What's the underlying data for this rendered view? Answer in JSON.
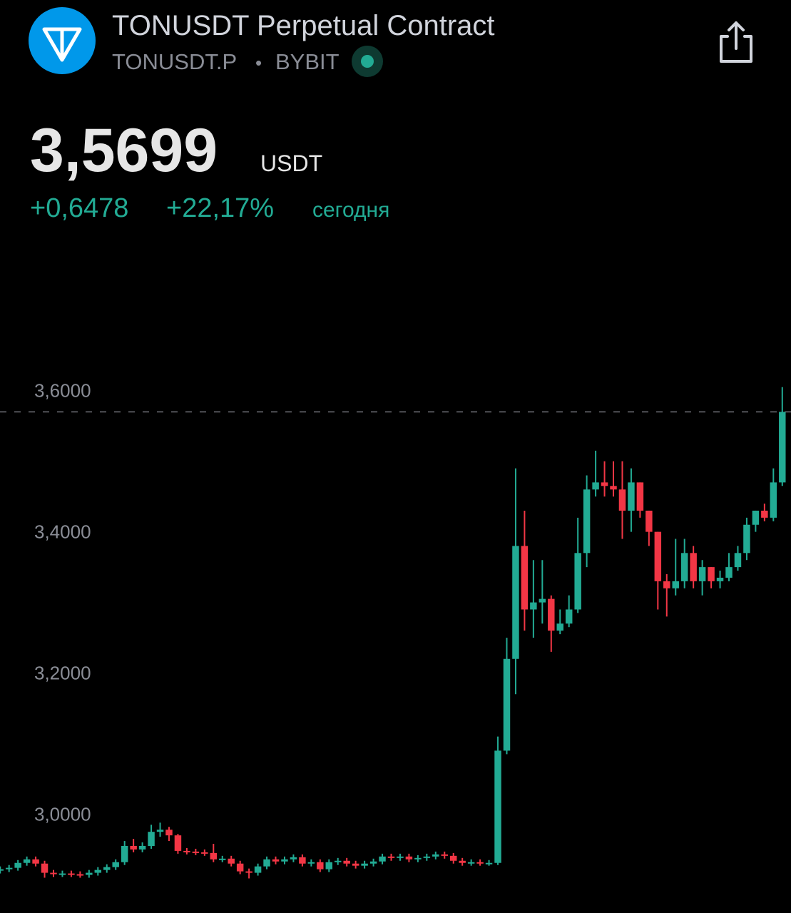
{
  "header": {
    "title": "TONUSDT Perpetual Contract",
    "symbol": "TONUSDT.P",
    "separator": "•",
    "exchange": "BYBIT",
    "price": "3,5699",
    "currency": "USDT",
    "change": "+0,6478",
    "change_pct": "+22,17%",
    "period": "сегодня"
  },
  "chart_data": {
    "type": "candlestick",
    "ylim": [
      2.86,
      3.82
    ],
    "yticks": [
      {
        "value": 3.0,
        "label": "3,0000"
      },
      {
        "value": 3.2,
        "label": "3,2000"
      },
      {
        "value": 3.4,
        "label": "3,4000"
      },
      {
        "value": 3.6,
        "label": "3,6000"
      }
    ],
    "up_color": "#22ab94",
    "down_color": "#f23645",
    "last_price": 3.5699,
    "open": [
      2.92,
      2.922,
      2.924,
      2.931,
      2.936,
      2.93,
      2.917,
      2.915,
      2.916,
      2.915,
      2.914,
      2.917,
      2.921,
      2.925,
      2.932,
      2.955,
      2.95,
      2.955,
      2.975,
      2.978,
      2.97,
      2.948,
      2.947,
      2.946,
      2.945,
      2.936,
      2.937,
      2.93,
      2.919,
      2.917,
      2.926,
      2.936,
      2.933,
      2.936,
      2.939,
      2.93,
      2.932,
      2.922,
      2.932,
      2.934,
      2.93,
      2.927,
      2.93,
      2.933,
      2.94,
      2.938,
      2.94,
      2.936,
      2.938,
      2.94,
      2.943,
      2.941,
      2.934,
      2.931,
      2.932,
      2.931,
      2.931,
      3.09,
      3.22,
      3.38,
      3.29,
      3.3,
      3.305,
      3.26,
      3.27,
      3.29,
      3.37,
      3.46,
      3.47,
      3.465,
      3.46,
      3.43,
      3.47,
      3.43,
      3.4,
      3.33,
      3.32,
      3.33,
      3.37,
      3.33,
      3.35,
      3.33,
      3.335,
      3.35,
      3.37,
      3.41,
      3.43,
      3.42,
      3.47
    ],
    "high": [
      2.926,
      2.928,
      2.935,
      2.94,
      2.94,
      2.934,
      2.921,
      2.92,
      2.92,
      2.919,
      2.921,
      2.925,
      2.929,
      2.936,
      2.962,
      2.965,
      2.96,
      2.985,
      2.988,
      2.982,
      2.972,
      2.952,
      2.951,
      2.95,
      2.958,
      2.941,
      2.941,
      2.934,
      2.923,
      2.93,
      2.94,
      2.94,
      2.94,
      2.943,
      2.943,
      2.936,
      2.936,
      2.936,
      2.938,
      2.938,
      2.934,
      2.934,
      2.937,
      2.944,
      2.944,
      2.944,
      2.944,
      2.942,
      2.944,
      2.947,
      2.947,
      2.945,
      2.938,
      2.936,
      2.936,
      2.935,
      3.11,
      3.25,
      3.49,
      3.43,
      3.36,
      3.36,
      3.31,
      3.29,
      3.31,
      3.42,
      3.48,
      3.515,
      3.5,
      3.5,
      3.5,
      3.49,
      3.47,
      3.43,
      3.4,
      3.34,
      3.39,
      3.39,
      3.38,
      3.36,
      3.35,
      3.345,
      3.37,
      3.38,
      3.42,
      3.43,
      3.44,
      3.49,
      3.605
    ],
    "low": [
      2.916,
      2.918,
      2.92,
      2.927,
      2.926,
      2.91,
      2.911,
      2.911,
      2.911,
      2.91,
      2.91,
      2.913,
      2.917,
      2.921,
      2.928,
      2.946,
      2.946,
      2.951,
      2.968,
      2.962,
      2.944,
      2.943,
      2.942,
      2.941,
      2.932,
      2.932,
      2.926,
      2.915,
      2.909,
      2.913,
      2.922,
      2.929,
      2.929,
      2.932,
      2.926,
      2.926,
      2.918,
      2.918,
      2.928,
      2.926,
      2.923,
      2.923,
      2.926,
      2.929,
      2.934,
      2.934,
      2.932,
      2.932,
      2.934,
      2.936,
      2.937,
      2.93,
      2.927,
      2.927,
      2.927,
      2.927,
      2.928,
      3.085,
      3.17,
      3.26,
      3.25,
      3.27,
      3.23,
      3.255,
      3.265,
      3.285,
      3.35,
      3.45,
      3.45,
      3.45,
      3.39,
      3.4,
      3.42,
      3.38,
      3.29,
      3.28,
      3.31,
      3.32,
      3.32,
      3.31,
      3.32,
      3.32,
      3.33,
      3.345,
      3.36,
      3.4,
      3.415,
      3.415,
      3.465
    ],
    "close": [
      2.922,
      2.924,
      2.931,
      2.936,
      2.93,
      2.917,
      2.915,
      2.916,
      2.915,
      2.914,
      2.917,
      2.921,
      2.925,
      2.932,
      2.955,
      2.95,
      2.955,
      2.975,
      2.978,
      2.97,
      2.948,
      2.947,
      2.946,
      2.945,
      2.936,
      2.937,
      2.93,
      2.919,
      2.917,
      2.926,
      2.936,
      2.933,
      2.936,
      2.939,
      2.93,
      2.932,
      2.922,
      2.932,
      2.934,
      2.93,
      2.927,
      2.93,
      2.933,
      2.94,
      2.938,
      2.94,
      2.936,
      2.938,
      2.94,
      2.943,
      2.941,
      2.934,
      2.931,
      2.932,
      2.931,
      2.931,
      3.09,
      3.22,
      3.38,
      3.29,
      3.3,
      3.305,
      3.26,
      3.27,
      3.29,
      3.37,
      3.46,
      3.47,
      3.465,
      3.46,
      3.43,
      3.47,
      3.43,
      3.4,
      3.33,
      3.32,
      3.33,
      3.37,
      3.33,
      3.35,
      3.33,
      3.335,
      3.35,
      3.37,
      3.41,
      3.43,
      3.42,
      3.47,
      3.5699
    ]
  }
}
